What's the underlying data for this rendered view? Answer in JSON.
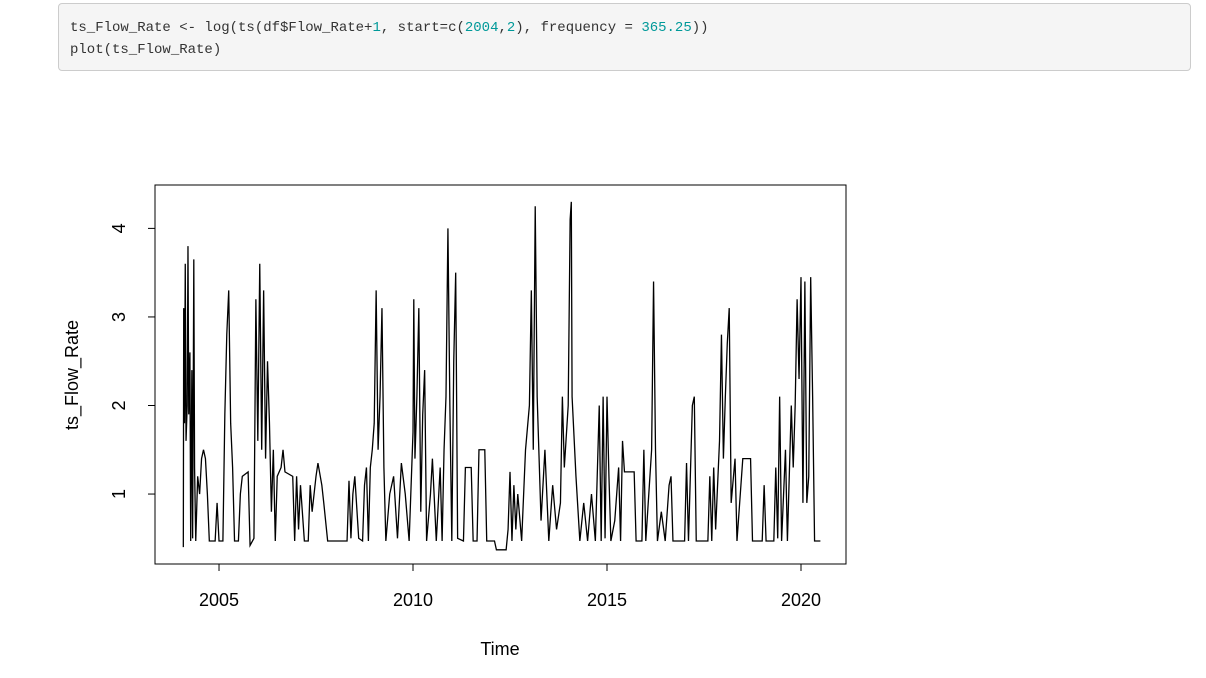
{
  "code": {
    "lines": [
      [
        "ts_Flow_Rate <- log(ts(df$Flow_Rate+",
        "1",
        ", start=c(",
        "2004",
        ",",
        "2",
        "), frequency = ",
        "365.25",
        "))"
      ],
      [
        "plot(ts_Flow_Rate)"
      ]
    ]
  },
  "chart_data": {
    "type": "line",
    "xlabel": "Time",
    "ylabel": "ts_Flow_Rate",
    "color": "#000000",
    "xlim": [
      2003.35,
      2021.16
    ],
    "xticks": [
      2005,
      2010,
      2015,
      2020
    ],
    "ylim": [
      0.21,
      4.49
    ],
    "yticks": [
      1,
      2,
      3,
      4
    ],
    "x": [
      2004.08,
      2004.09,
      2004.11,
      2004.13,
      2004.15,
      2004.18,
      2004.2,
      2004.22,
      2004.25,
      2004.27,
      2004.3,
      2004.32,
      2004.35,
      2004.37,
      2004.4,
      2004.45,
      2004.5,
      2004.55,
      2004.6,
      2004.65,
      2004.7,
      2004.75,
      2004.9,
      2004.95,
      2005.0,
      2005.1,
      2005.15,
      2005.2,
      2005.25,
      2005.3,
      2005.35,
      2005.4,
      2005.5,
      2005.55,
      2005.6,
      2005.75,
      2005.8,
      2005.9,
      2005.95,
      2006.0,
      2006.05,
      2006.1,
      2006.15,
      2006.2,
      2006.25,
      2006.3,
      2006.35,
      2006.4,
      2006.45,
      2006.5,
      2006.6,
      2006.65,
      2006.7,
      2006.9,
      2006.95,
      2007.0,
      2007.05,
      2007.1,
      2007.2,
      2007.3,
      2007.35,
      2007.4,
      2007.5,
      2007.55,
      2007.65,
      2007.7,
      2007.8,
      2008.3,
      2008.35,
      2008.4,
      2008.45,
      2008.5,
      2008.6,
      2008.7,
      2008.75,
      2008.8,
      2008.85,
      2008.9,
      2008.95,
      2009.0,
      2009.05,
      2009.1,
      2009.15,
      2009.2,
      2009.25,
      2009.3,
      2009.4,
      2009.5,
      2009.6,
      2009.7,
      2009.8,
      2009.9,
      2010.0,
      2010.02,
      2010.05,
      2010.1,
      2010.15,
      2010.2,
      2010.25,
      2010.3,
      2010.35,
      2010.45,
      2010.5,
      2010.6,
      2010.7,
      2010.75,
      2010.8,
      2010.85,
      2010.9,
      2010.95,
      2011.0,
      2011.05,
      2011.1,
      2011.15,
      2011.3,
      2011.35,
      2011.5,
      2011.55,
      2011.65,
      2011.7,
      2011.85,
      2011.9,
      2012.1,
      2012.15,
      2012.4,
      2012.45,
      2012.5,
      2012.55,
      2012.6,
      2012.65,
      2012.7,
      2012.8,
      2012.9,
      2013.0,
      2013.05,
      2013.1,
      2013.15,
      2013.2,
      2013.3,
      2013.4,
      2013.5,
      2013.6,
      2013.7,
      2013.8,
      2013.85,
      2013.9,
      2014.0,
      2014.05,
      2014.08,
      2014.1,
      2014.2,
      2014.3,
      2014.4,
      2014.5,
      2014.6,
      2014.7,
      2014.8,
      2014.85,
      2014.9,
      2014.95,
      2015.0,
      2015.05,
      2015.1,
      2015.2,
      2015.3,
      2015.35,
      2015.4,
      2015.45,
      2015.7,
      2015.75,
      2015.9,
      2015.95,
      2016.0,
      2016.15,
      2016.2,
      2016.25,
      2016.3,
      2016.4,
      2016.5,
      2016.6,
      2016.65,
      2016.7,
      2017.0,
      2017.05,
      2017.1,
      2017.2,
      2017.25,
      2017.3,
      2017.6,
      2017.65,
      2017.7,
      2017.75,
      2017.8,
      2017.9,
      2017.95,
      2018.0,
      2018.05,
      2018.1,
      2018.15,
      2018.2,
      2018.3,
      2018.35,
      2018.5,
      2018.7,
      2018.75,
      2019.0,
      2019.05,
      2019.1,
      2019.3,
      2019.35,
      2019.4,
      2019.45,
      2019.5,
      2019.6,
      2019.65,
      2019.75,
      2019.8,
      2019.85,
      2019.9,
      2019.95,
      2020.0,
      2020.05,
      2020.1,
      2020.15,
      2020.2,
      2020.25,
      2020.3,
      2020.35,
      2020.5
    ],
    "values": [
      0.4,
      3.1,
      1.8,
      3.6,
      1.6,
      2.0,
      3.8,
      1.9,
      2.6,
      0.47,
      2.4,
      0.5,
      3.65,
      1.3,
      0.47,
      1.2,
      1.0,
      1.4,
      1.5,
      1.4,
      1.0,
      0.47,
      0.47,
      0.9,
      0.47,
      0.47,
      1.9,
      2.8,
      3.3,
      1.8,
      1.3,
      0.47,
      0.47,
      1.0,
      1.2,
      1.25,
      0.42,
      0.5,
      3.2,
      1.6,
      3.6,
      1.5,
      3.3,
      1.4,
      2.5,
      1.8,
      0.8,
      1.5,
      0.47,
      1.2,
      1.3,
      1.5,
      1.25,
      1.2,
      0.47,
      1.2,
      0.6,
      1.1,
      0.47,
      0.47,
      1.1,
      0.8,
      1.2,
      1.35,
      1.1,
      0.9,
      0.47,
      0.47,
      1.15,
      0.5,
      1.0,
      1.2,
      0.5,
      0.47,
      1.1,
      1.3,
      0.47,
      1.3,
      1.5,
      1.8,
      3.3,
      1.5,
      2.1,
      3.1,
      1.3,
      0.47,
      1.0,
      1.2,
      0.5,
      1.35,
      1.0,
      0.47,
      1.7,
      3.2,
      1.4,
      2.1,
      3.1,
      0.8,
      1.9,
      2.4,
      0.47,
      1.0,
      1.4,
      0.47,
      1.3,
      0.47,
      1.5,
      2.1,
      4.0,
      2.0,
      0.47,
      2.5,
      3.5,
      0.5,
      0.47,
      1.3,
      1.3,
      0.47,
      0.47,
      1.5,
      1.5,
      0.47,
      0.47,
      0.37,
      0.37,
      0.6,
      1.25,
      0.47,
      1.1,
      0.6,
      1.0,
      0.47,
      1.5,
      2.0,
      3.3,
      1.5,
      4.25,
      2.1,
      0.7,
      1.5,
      0.47,
      1.1,
      0.6,
      0.9,
      2.1,
      1.3,
      2.0,
      4.1,
      4.3,
      2.1,
      1.2,
      0.47,
      0.9,
      0.47,
      1.0,
      0.47,
      2.0,
      0.47,
      2.1,
      0.5,
      2.1,
      1.2,
      0.47,
      0.7,
      1.3,
      0.47,
      1.6,
      1.25,
      1.25,
      0.47,
      0.47,
      1.5,
      0.47,
      1.5,
      3.4,
      1.5,
      0.47,
      0.8,
      0.47,
      1.1,
      1.2,
      0.47,
      0.47,
      1.35,
      0.47,
      2.0,
      2.1,
      0.47,
      0.47,
      1.2,
      0.47,
      1.3,
      0.6,
      1.6,
      2.8,
      1.4,
      2.1,
      2.7,
      3.1,
      0.9,
      1.4,
      0.47,
      1.4,
      1.4,
      0.47,
      0.47,
      1.1,
      0.47,
      0.47,
      1.3,
      0.5,
      2.1,
      0.47,
      1.5,
      0.47,
      2.0,
      1.3,
      2.0,
      3.2,
      2.3,
      3.45,
      0.9,
      3.4,
      0.9,
      1.2,
      3.45,
      2.1,
      0.47,
      0.47
    ]
  }
}
